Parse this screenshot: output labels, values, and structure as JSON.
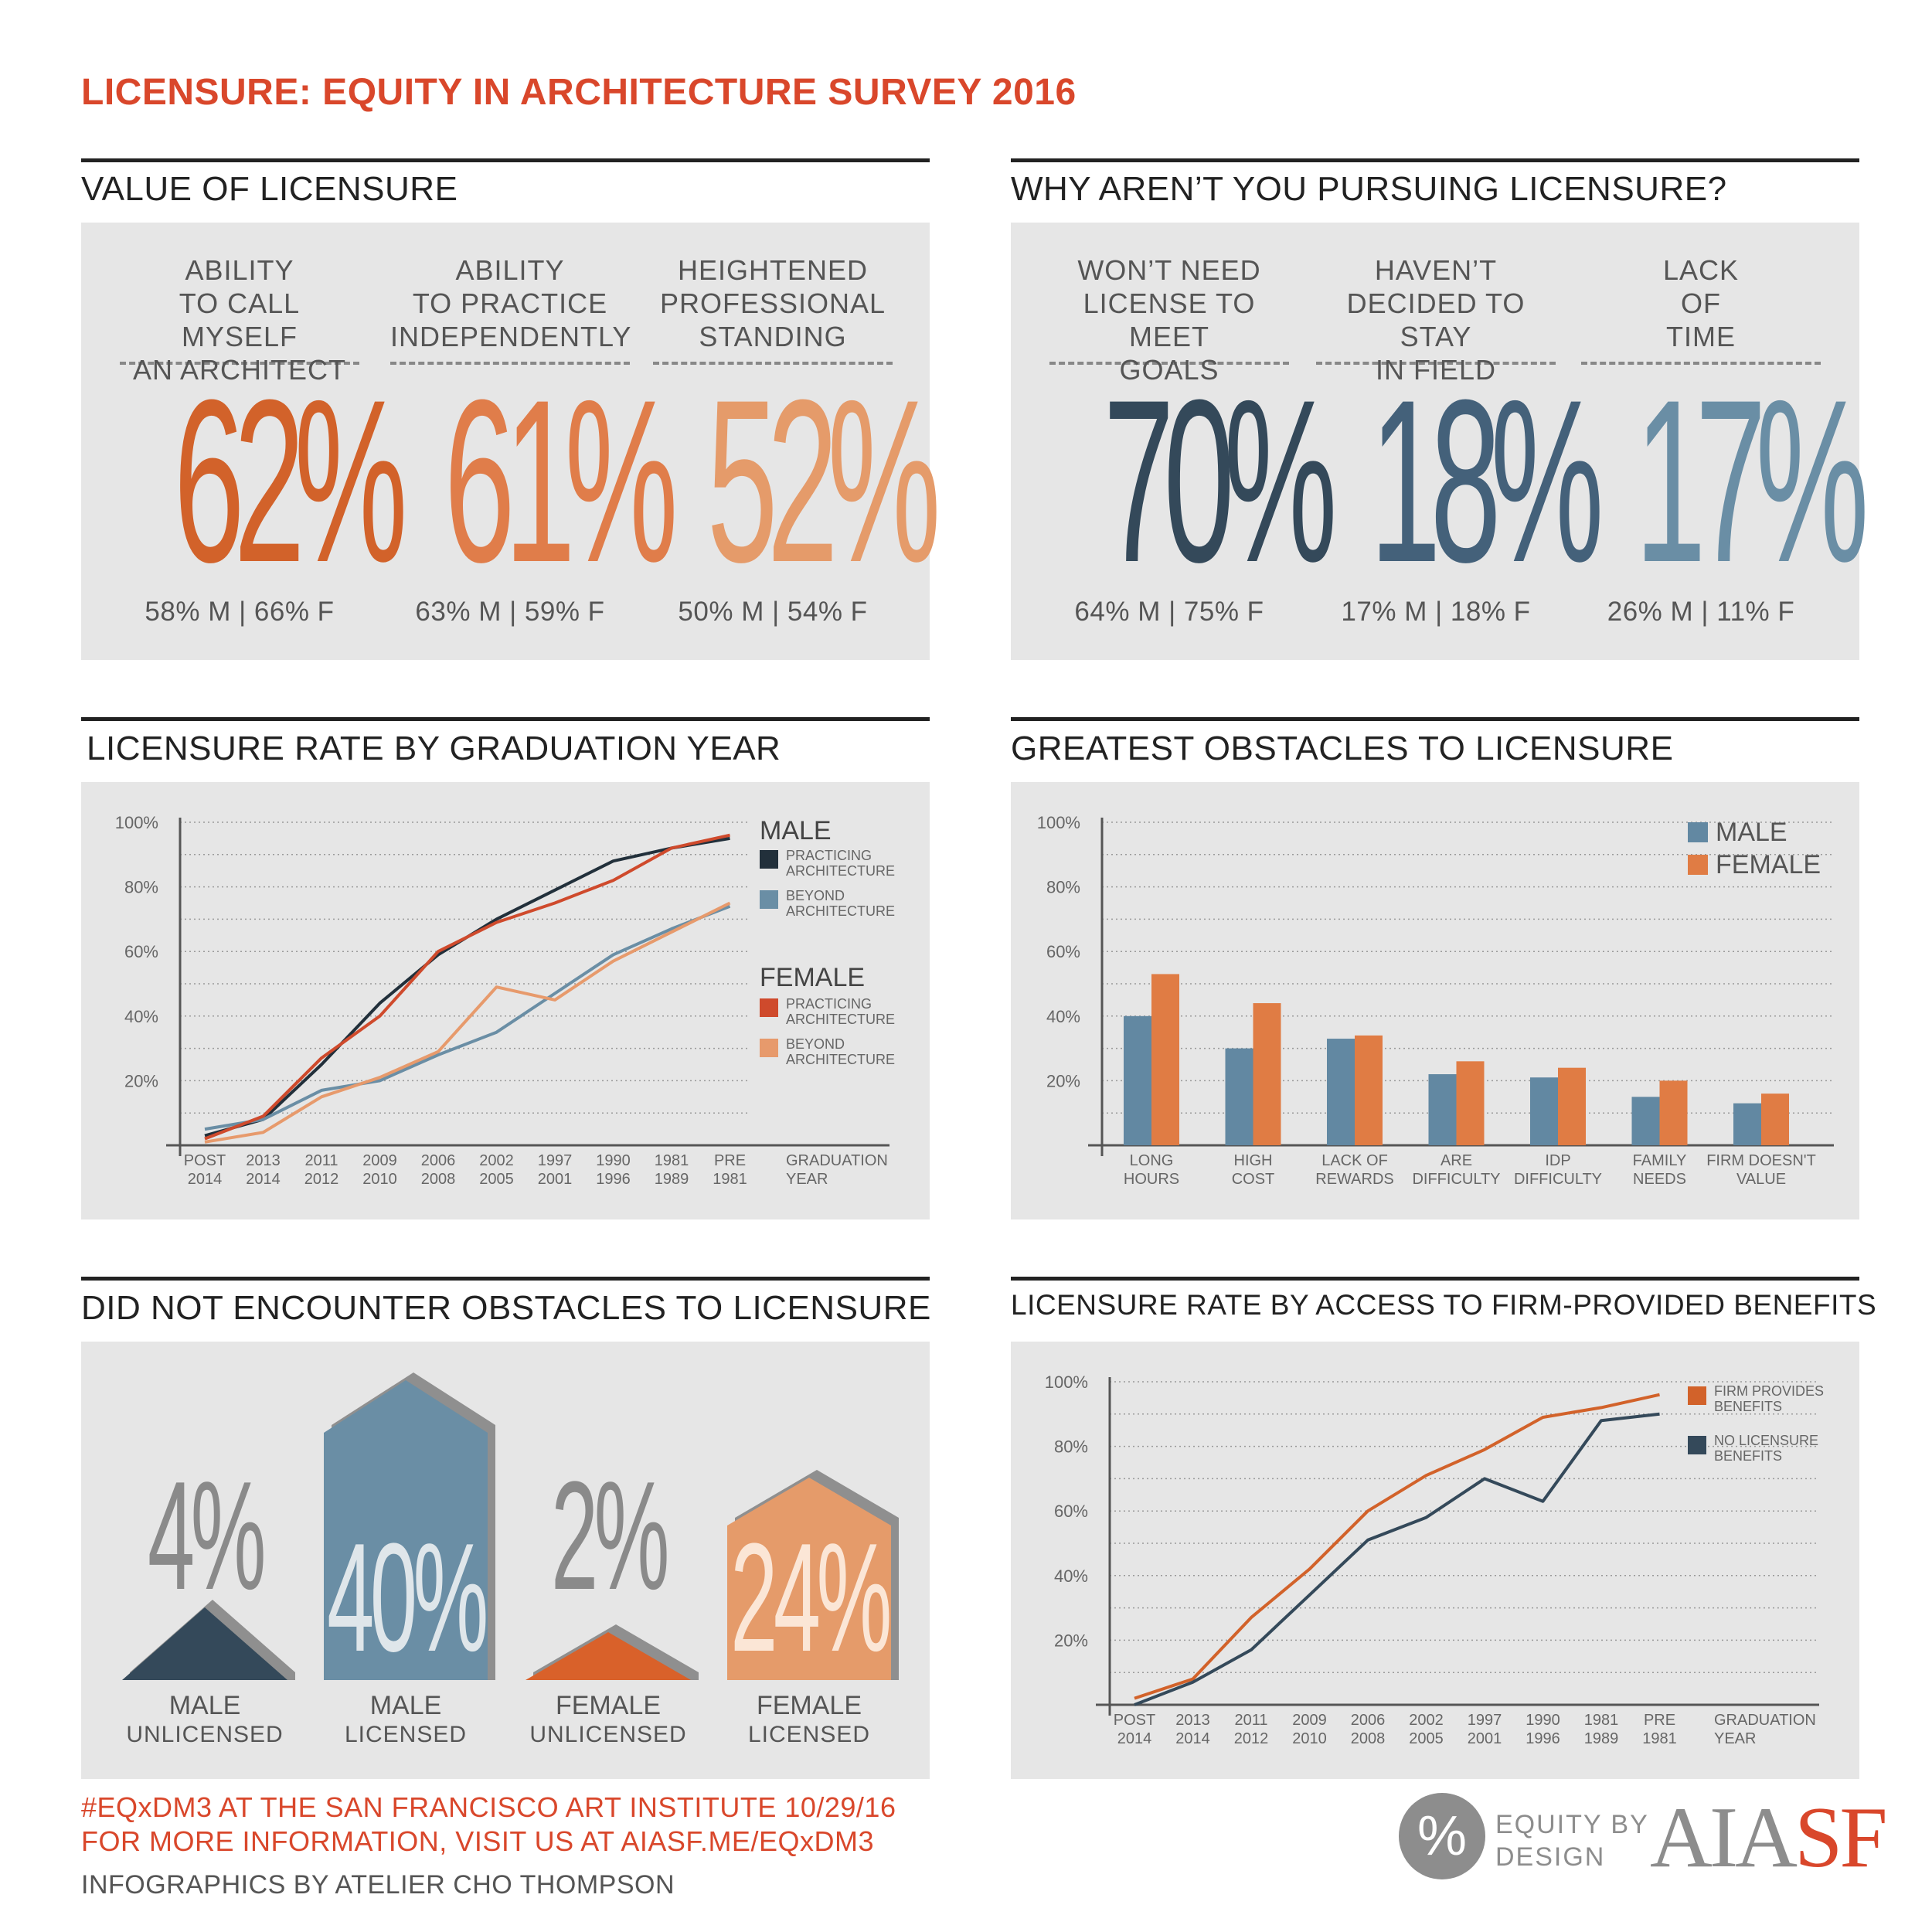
{
  "title": "LICENSURE: EQUITY IN ARCHITECTURE SURVEY 2016",
  "colors": {
    "red_title": "#d9472b",
    "orange_dark": "#d2622a",
    "orange_mid": "#e07d4a",
    "orange_light": "#e59b6a",
    "navy": "#34495a",
    "slate": "#44617a",
    "blue": "#6a8ea5",
    "male_bar": "#6288a2",
    "female_bar": "#e07c44"
  },
  "value_of_licensure": {
    "title": "VALUE OF LICENSURE",
    "stats": [
      {
        "label_lines": [
          "ABILITY",
          "TO CALL MYSELF",
          "AN ARCHITECT"
        ],
        "value": "62%",
        "split": "58% M | 66% F"
      },
      {
        "label_lines": [
          "ABILITY",
          "TO PRACTICE",
          "INDEPENDENTLY"
        ],
        "value": "61%",
        "split": "63% M | 59% F"
      },
      {
        "label_lines": [
          "HEIGHTENED",
          "PROFESSIONAL",
          "STANDING"
        ],
        "value": "52%",
        "split": "50% M | 54% F"
      }
    ]
  },
  "why_not_pursuing": {
    "title": "WHY AREN’T YOU PURSUING LICENSURE?",
    "stats": [
      {
        "label_lines": [
          "WON’T NEED",
          "LICENSE TO MEET",
          "GOALS"
        ],
        "value": "70%",
        "split": "64% M | 75% F"
      },
      {
        "label_lines": [
          "HAVEN’T",
          "DECIDED TO STAY",
          "IN FIELD"
        ],
        "value": "18%",
        "split": "17% M | 18% F"
      },
      {
        "label_lines": [
          "LACK",
          "OF",
          "TIME"
        ],
        "value": "17%",
        "split": "26% M | 11% F"
      }
    ]
  },
  "rate_by_grad_year": {
    "title": "LICENSURE RATE BY GRADUATION YEAR",
    "legend": {
      "male_heading": "MALE",
      "female_heading": "FEMALE",
      "practicing": [
        "PRACTICING",
        "ARCHITECTURE"
      ],
      "beyond": [
        "BEYOND",
        "ARCHITECTURE"
      ]
    }
  },
  "greatest_obstacles": {
    "title": "GREATEST OBSTACLES TO LICENSURE",
    "legend": {
      "male": "MALE",
      "female": "FEMALE"
    }
  },
  "did_not_encounter": {
    "title": "DID NOT ENCOUNTER OBSTACLES TO LICENSURE",
    "items": [
      {
        "value": "4%",
        "label1": "MALE",
        "label2": "UNLICENSED"
      },
      {
        "value": "40%",
        "label1": "MALE",
        "label2": "LICENSED"
      },
      {
        "value": "2%",
        "label1": "FEMALE",
        "label2": "UNLICENSED"
      },
      {
        "value": "24%",
        "label1": "FEMALE",
        "label2": "LICENSED"
      }
    ]
  },
  "rate_by_benefits": {
    "title": "LICENSURE RATE BY ACCESS TO FIRM-PROVIDED BENEFITS",
    "legend": {
      "provides": [
        "FIRM PROVIDES",
        "BENEFITS"
      ],
      "none": [
        "NO LICENSURE",
        "BENEFITS"
      ]
    }
  },
  "footer": {
    "event": "#EQxDM3 AT THE SAN FRANCISCO ART INSTITUTE 10/29/16",
    "info": "FOR MORE INFORMATION, VISIT US AT AIASF.ME/EQxDM3",
    "credit": "INFOGRAPHICS BY ATELIER CHO THOMPSON",
    "logo_symbol": "%",
    "logo_text1": "EQUITY BY",
    "logo_text2": "DESIGN",
    "aia_text": "AIA",
    "sf_text": "SF"
  },
  "chart_data": [
    {
      "id": "grad_year",
      "type": "line",
      "title": "LICENSURE RATE BY GRADUATION YEAR",
      "categories": [
        [
          "POST",
          "2014"
        ],
        [
          "2013",
          "2014"
        ],
        [
          "2011",
          "2012"
        ],
        [
          "2009",
          "2010"
        ],
        [
          "2006",
          "2008"
        ],
        [
          "2002",
          "2005"
        ],
        [
          "1997",
          "2001"
        ],
        [
          "1990",
          "1996"
        ],
        [
          "1981",
          "1989"
        ],
        [
          "PRE",
          "1981"
        ]
      ],
      "xlabel": [
        "GRADUATION",
        "YEAR"
      ],
      "ylim": [
        0,
        100
      ],
      "yticks": [
        "20%",
        "40%",
        "60%",
        "80%",
        "100%"
      ],
      "series": [
        {
          "name": "MALE PRACTICING ARCHITECTURE",
          "color": "#22303b",
          "values": [
            3,
            8,
            25,
            44,
            59,
            70,
            79,
            88,
            92,
            95
          ]
        },
        {
          "name": "MALE BEYOND ARCHITECTURE",
          "color": "#6a8ea5",
          "values": [
            5,
            8,
            17,
            20,
            28,
            35,
            47,
            59,
            67,
            74
          ]
        },
        {
          "name": "FEMALE PRACTICING ARCHITECTURE",
          "color": "#cf4a2c",
          "values": [
            2,
            9,
            27,
            40,
            60,
            69,
            75,
            82,
            92,
            96
          ]
        },
        {
          "name": "FEMALE BEYOND ARCHITECTURE",
          "color": "#e79a6c",
          "values": [
            1,
            4,
            15,
            21,
            29,
            49,
            45,
            57,
            66,
            75
          ]
        }
      ]
    },
    {
      "id": "obstacles",
      "type": "bar",
      "title": "GREATEST OBSTACLES TO LICENSURE",
      "categories": [
        [
          "LONG",
          "HOURS"
        ],
        [
          "HIGH",
          "COST"
        ],
        [
          "LACK OF",
          "REWARDS"
        ],
        [
          "ARE",
          "DIFFICULTY"
        ],
        [
          "IDP",
          "DIFFICULTY"
        ],
        [
          "FAMILY",
          "NEEDS"
        ],
        [
          "FIRM DOESN'T",
          "VALUE"
        ]
      ],
      "ylim": [
        0,
        100
      ],
      "yticks": [
        "20%",
        "40%",
        "60%",
        "80%",
        "100%"
      ],
      "series": [
        {
          "name": "MALE",
          "color": "#6288a2",
          "values": [
            40,
            30,
            33,
            22,
            21,
            15,
            13
          ]
        },
        {
          "name": "FEMALE",
          "color": "#e07c44",
          "values": [
            53,
            44,
            34,
            26,
            24,
            20,
            16
          ]
        }
      ]
    },
    {
      "id": "benefits",
      "type": "line",
      "title": "LICENSURE RATE BY ACCESS TO FIRM-PROVIDED BENEFITS",
      "categories": [
        [
          "POST",
          "2014"
        ],
        [
          "2013",
          "2014"
        ],
        [
          "2011",
          "2012"
        ],
        [
          "2009",
          "2010"
        ],
        [
          "2006",
          "2008"
        ],
        [
          "2002",
          "2005"
        ],
        [
          "1997",
          "2001"
        ],
        [
          "1990",
          "1996"
        ],
        [
          "1981",
          "1989"
        ],
        [
          "PRE",
          "1981"
        ]
      ],
      "xlabel": [
        "GRADUATION",
        "YEAR"
      ],
      "ylim": [
        0,
        100
      ],
      "yticks": [
        "20%",
        "40%",
        "60%",
        "80%",
        "100%"
      ],
      "series": [
        {
          "name": "FIRM PROVIDES BENEFITS",
          "color": "#d2622a",
          "values": [
            2,
            8,
            27,
            42,
            60,
            71,
            79,
            89,
            92,
            96
          ]
        },
        {
          "name": "NO LICENSURE BENEFITS",
          "color": "#34495a",
          "values": [
            0,
            7,
            17,
            34,
            51,
            58,
            70,
            63,
            88,
            90
          ]
        }
      ]
    }
  ]
}
